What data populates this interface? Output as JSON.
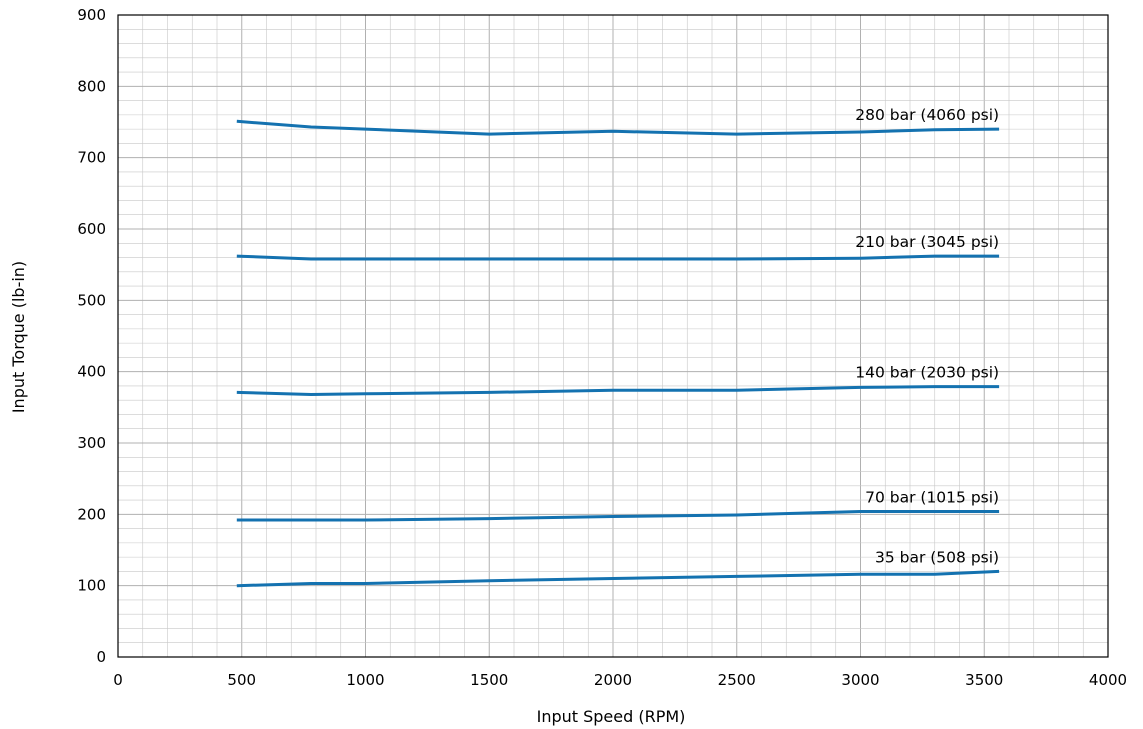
{
  "chart_data": {
    "type": "line",
    "title": "",
    "xlabel": "Input Speed (RPM)",
    "ylabel": "Input Torque (lb-in)",
    "xlim": [
      0,
      4000
    ],
    "ylim": [
      0,
      900
    ],
    "x_ticks": [
      "0",
      "500",
      "1000",
      "1500",
      "2000",
      "2500",
      "3000",
      "3500",
      "4000"
    ],
    "y_ticks": [
      "0",
      "100",
      "200",
      "300",
      "400",
      "500",
      "600",
      "700",
      "800",
      "900"
    ],
    "grid": true,
    "series_color": "#1472b0",
    "series": [
      {
        "name": "280 bar (4060 psi)",
        "x": [
          480,
          780,
          1000,
          1500,
          2000,
          2500,
          3000,
          3300,
          3560
        ],
        "values": [
          751,
          743,
          740,
          733,
          737,
          733,
          736,
          739,
          740
        ]
      },
      {
        "name": "210 bar (3045 psi)",
        "x": [
          480,
          780,
          1000,
          1500,
          2000,
          2500,
          3000,
          3300,
          3560
        ],
        "values": [
          562,
          558,
          558,
          558,
          558,
          558,
          559,
          562,
          562
        ]
      },
      {
        "name": "140 bar (2030 psi)",
        "x": [
          480,
          780,
          1000,
          1500,
          2000,
          2500,
          3000,
          3300,
          3560
        ],
        "values": [
          371,
          368,
          369,
          371,
          374,
          374,
          378,
          379,
          379
        ]
      },
      {
        "name": "70 bar (1015 psi)",
        "x": [
          480,
          780,
          1000,
          1500,
          2000,
          2500,
          3000,
          3300,
          3560
        ],
        "values": [
          192,
          192,
          192,
          194,
          197,
          199,
          204,
          204,
          204
        ]
      },
      {
        "name": "35 bar (508 psi)",
        "x": [
          480,
          780,
          1000,
          1500,
          2000,
          2500,
          3000,
          3300,
          3560
        ],
        "values": [
          100,
          103,
          103,
          107,
          110,
          113,
          116,
          116,
          120
        ]
      }
    ]
  }
}
